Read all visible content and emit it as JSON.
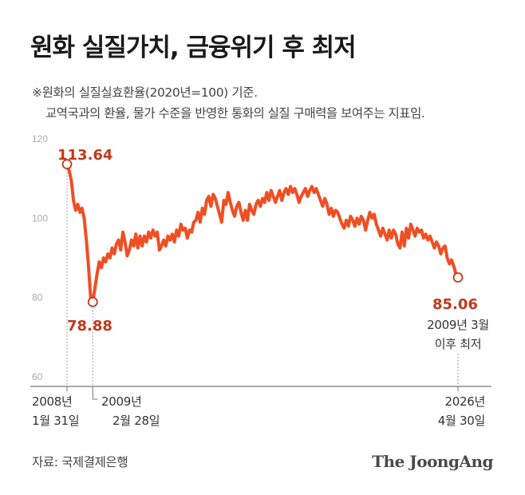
{
  "header": {
    "title": "원화 실질가치, 금융위기 후 최저",
    "note_line1": "※원화의 실질실효환율(2020년=100) 기준.",
    "note_line2": "교역국과의 환율, 물가 수준을 반영한 통화의 실질 구매력을 보여주는 지표임."
  },
  "footer": {
    "source": "자료: 국제결제은행",
    "logo": "The JoongAng"
  },
  "colors": {
    "line": "#f04e23",
    "value_text": "#c0391b",
    "axis": "#666666"
  },
  "chart_data": {
    "type": "line",
    "title": "원화 실질가치, 금융위기 후 최저",
    "ylim": [
      60,
      120
    ],
    "yticks": [
      120,
      100,
      80,
      60
    ],
    "x_start": "2008-01",
    "x_end": "2026-04",
    "series": [
      {
        "values": [
          113.64,
          112.0,
          109.5,
          104.5,
          102.0,
          103.5,
          101.5,
          102.5,
          100.0,
          94.5,
          88.0,
          80.0,
          78.88,
          82.5,
          86.0,
          89.0,
          87.5,
          90.0,
          89.0,
          91.0,
          90.0,
          92.5,
          91.0,
          93.5,
          94.5,
          92.0,
          96.5,
          94.0,
          90.5,
          92.0,
          94.5,
          93.0,
          96.0,
          92.5,
          95.5,
          93.0,
          95.5,
          94.0,
          96.5,
          95.0,
          97.0,
          95.5,
          96.5,
          92.0,
          93.0,
          94.5,
          93.0,
          95.5,
          94.5,
          96.0,
          94.0,
          97.0,
          95.5,
          98.5,
          97.0,
          97.5,
          95.0,
          97.0,
          96.5,
          99.0,
          99.5,
          101.5,
          99.0,
          102.5,
          101.0,
          104.5,
          105.5,
          103.0,
          106.0,
          105.0,
          103.0,
          101.0,
          99.0,
          104.5,
          103.5,
          106.5,
          104.0,
          102.0,
          100.5,
          103.0,
          104.0,
          101.5,
          99.5,
          102.0,
          99.5,
          103.5,
          102.0,
          101.0,
          103.5,
          104.5,
          103.0,
          105.0,
          104.0,
          106.5,
          104.5,
          107.0,
          105.5,
          104.0,
          105.5,
          107.0,
          104.5,
          106.5,
          107.5,
          106.0,
          108.0,
          106.5,
          107.5,
          106.0,
          104.0,
          105.5,
          106.5,
          107.5,
          105.5,
          107.0,
          108.0,
          106.5,
          107.5,
          106.0,
          104.5,
          103.0,
          105.0,
          103.5,
          101.0,
          102.5,
          100.5,
          102.0,
          101.5,
          100.0,
          98.5,
          97.5,
          99.5,
          98.0,
          100.5,
          99.5,
          98.0,
          100.0,
          98.5,
          100.5,
          99.5,
          97.0,
          99.5,
          101.5,
          100.0,
          101.0,
          98.5,
          97.0,
          95.5,
          97.5,
          96.0,
          94.5,
          97.0,
          95.0,
          97.0,
          96.0,
          93.5,
          92.5,
          96.5,
          93.0,
          97.5,
          95.0,
          98.5,
          97.0,
          95.5,
          97.5,
          96.5,
          97.0,
          95.0,
          96.0,
          94.5,
          95.5,
          94.0,
          92.5,
          94.0,
          93.0,
          91.0,
          92.5,
          93.0,
          90.0,
          88.5,
          89.5,
          88.0,
          86.0,
          85.06
        ]
      }
    ],
    "annotations": [
      {
        "label": "113.64",
        "value": 113.64,
        "date": "2008년 1월 31일"
      },
      {
        "label": "78.88",
        "value": 78.88,
        "date": "2009년 2월 28일"
      },
      {
        "label": "85.06",
        "value": 85.06,
        "date": "2026년 4월 30일",
        "note_line1": "2009년 3월",
        "note_line2": "이후 최저"
      }
    ],
    "x_labels": [
      {
        "line1": "2008년",
        "line2": "1월 31일"
      },
      {
        "line1": "2009년",
        "line2": "2월 28일"
      },
      {
        "line1": "2026년",
        "line2": "4월 30일"
      }
    ]
  }
}
